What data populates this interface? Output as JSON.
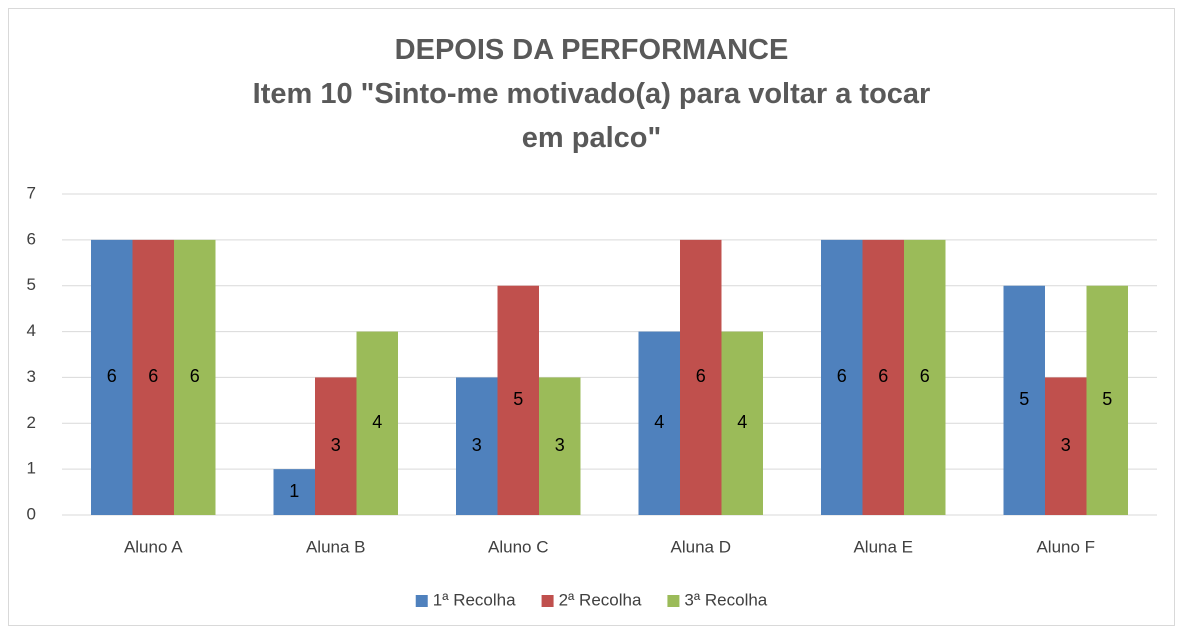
{
  "chart_data": {
    "type": "bar",
    "title": "DEPOIS DA PERFORMANCE",
    "subtitle": "Item 10 \"Sinto-me motivado(a) para voltar a tocar em palco\"",
    "categories": [
      "Aluno A",
      "Aluna B",
      "Aluno C",
      "Aluna D",
      "Aluna E",
      "Aluno F"
    ],
    "series": [
      {
        "name": "1ª Recolha",
        "color": "#4f81bd",
        "values": [
          6,
          1,
          3,
          4,
          6,
          5
        ]
      },
      {
        "name": "2ª Recolha",
        "color": "#c0504d",
        "values": [
          6,
          3,
          5,
          6,
          6,
          3
        ]
      },
      {
        "name": "3ª Recolha",
        "color": "#9bbb59",
        "values": [
          6,
          4,
          3,
          4,
          6,
          5
        ]
      }
    ],
    "ylim": [
      0,
      7
    ],
    "yticks": [
      0,
      1,
      2,
      3,
      4,
      5,
      6,
      7
    ],
    "grid": true,
    "legend": "bottom",
    "data_labels": true
  }
}
